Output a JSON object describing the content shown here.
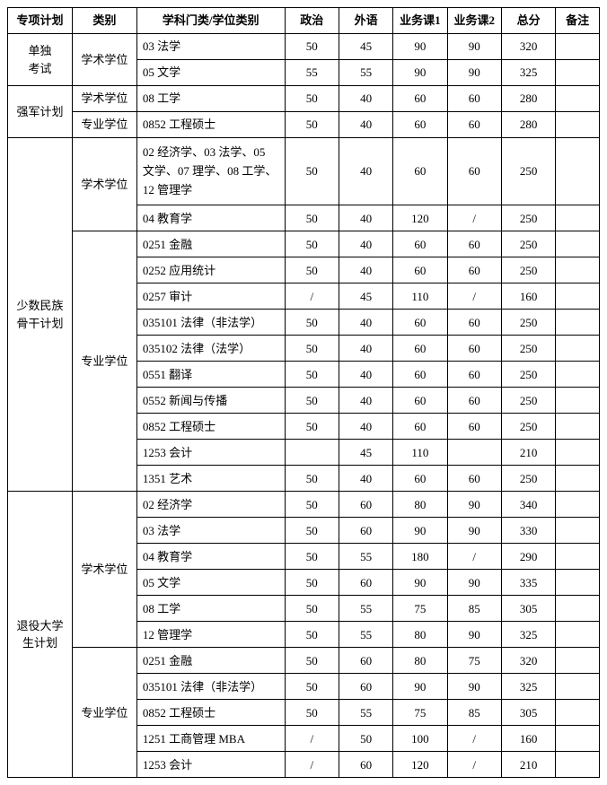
{
  "columns": [
    "专项计划",
    "类别",
    "学科门类/学位类别",
    "政治",
    "外语",
    "业务课1",
    "业务课2",
    "总分",
    "备注"
  ],
  "sections": [
    {
      "plan": "单独\n考试",
      "groups": [
        {
          "type": "学术学位",
          "rows": [
            {
              "disc": "03 法学",
              "c": [
                "50",
                "45",
                "90",
                "90",
                "320",
                ""
              ]
            },
            {
              "disc": "05 文学",
              "c": [
                "55",
                "55",
                "90",
                "90",
                "325",
                ""
              ]
            }
          ]
        }
      ]
    },
    {
      "plan": "强军计划",
      "groups": [
        {
          "type": "学术学位",
          "rows": [
            {
              "disc": "08 工学",
              "c": [
                "50",
                "40",
                "60",
                "60",
                "280",
                ""
              ]
            }
          ]
        },
        {
          "type": "专业学位",
          "rows": [
            {
              "disc": "0852 工程硕士",
              "c": [
                "50",
                "40",
                "60",
                "60",
                "280",
                ""
              ]
            }
          ]
        }
      ]
    },
    {
      "plan": "少数民族\n骨干计划",
      "groups": [
        {
          "type": "学术学位",
          "rows": [
            {
              "disc": "02 经济学、03 法学、05 文学、07 理学、08 工学、12 管理学",
              "c": [
                "50",
                "40",
                "60",
                "60",
                "250",
                ""
              ],
              "multi": true
            },
            {
              "disc": "04 教育学",
              "c": [
                "50",
                "40",
                "120",
                "/",
                "250",
                ""
              ]
            }
          ]
        },
        {
          "type": "专业学位",
          "rows": [
            {
              "disc": "0251 金融",
              "c": [
                "50",
                "40",
                "60",
                "60",
                "250",
                ""
              ]
            },
            {
              "disc": "0252 应用统计",
              "c": [
                "50",
                "40",
                "60",
                "60",
                "250",
                ""
              ]
            },
            {
              "disc": "0257 审计",
              "c": [
                "/",
                "45",
                "110",
                "/",
                "160",
                ""
              ]
            },
            {
              "disc": "035101 法律（非法学）",
              "c": [
                "50",
                "40",
                "60",
                "60",
                "250",
                ""
              ]
            },
            {
              "disc": "035102 法律（法学）",
              "c": [
                "50",
                "40",
                "60",
                "60",
                "250",
                ""
              ]
            },
            {
              "disc": "0551 翻译",
              "c": [
                "50",
                "40",
                "60",
                "60",
                "250",
                ""
              ]
            },
            {
              "disc": "0552 新闻与传播",
              "c": [
                "50",
                "40",
                "60",
                "60",
                "250",
                ""
              ]
            },
            {
              "disc": "0852 工程硕士",
              "c": [
                "50",
                "40",
                "60",
                "60",
                "250",
                ""
              ]
            },
            {
              "disc": "1253 会计",
              "c": [
                "",
                "45",
                "110",
                "",
                "210",
                ""
              ]
            },
            {
              "disc": "1351 艺术",
              "c": [
                "50",
                "40",
                "60",
                "60",
                "250",
                ""
              ]
            }
          ]
        }
      ]
    },
    {
      "plan": "退役大学\n生计划",
      "groups": [
        {
          "type": "学术学位",
          "rows": [
            {
              "disc": "02 经济学",
              "c": [
                "50",
                "60",
                "80",
                "90",
                "340",
                ""
              ]
            },
            {
              "disc": "03 法学",
              "c": [
                "50",
                "60",
                "90",
                "90",
                "330",
                ""
              ]
            },
            {
              "disc": "04 教育学",
              "c": [
                "50",
                "55",
                "180",
                "/",
                "290",
                ""
              ]
            },
            {
              "disc": "05 文学",
              "c": [
                "50",
                "60",
                "90",
                "90",
                "335",
                ""
              ]
            },
            {
              "disc": "08 工学",
              "c": [
                "50",
                "55",
                "75",
                "85",
                "305",
                ""
              ]
            },
            {
              "disc": "12 管理学",
              "c": [
                "50",
                "55",
                "80",
                "90",
                "325",
                ""
              ]
            }
          ]
        },
        {
          "type": "专业学位",
          "rows": [
            {
              "disc": "0251 金融",
              "c": [
                "50",
                "60",
                "80",
                "75",
                "320",
                ""
              ]
            },
            {
              "disc": "035101 法律（非法学）",
              "c": [
                "50",
                "60",
                "90",
                "90",
                "325",
                ""
              ]
            },
            {
              "disc": "0852 工程硕士",
              "c": [
                "50",
                "55",
                "75",
                "85",
                "305",
                ""
              ]
            },
            {
              "disc": "1251 工商管理 MBA",
              "c": [
                "/",
                "50",
                "100",
                "/",
                "160",
                ""
              ]
            },
            {
              "disc": "1253 会计",
              "c": [
                "/",
                "60",
                "120",
                "/",
                "210",
                ""
              ]
            }
          ]
        }
      ]
    }
  ]
}
